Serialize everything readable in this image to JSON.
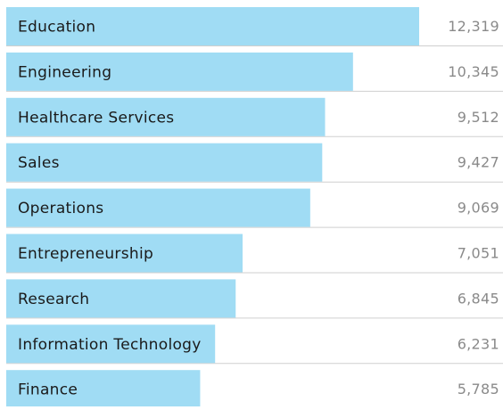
{
  "chart_data": {
    "type": "bar",
    "orientation": "horizontal",
    "categories": [
      "Education",
      "Engineering",
      "Healthcare Services",
      "Sales",
      "Operations",
      "Entrepreneurship",
      "Research",
      "Information Technology",
      "Finance"
    ],
    "values": [
      12319,
      10345,
      9512,
      9427,
      9069,
      7051,
      6845,
      6231,
      5785
    ],
    "value_labels": [
      "12,319",
      "10,345",
      "9,512",
      "9,427",
      "9,069",
      "7,051",
      "6,845",
      "6,231",
      "5,785"
    ],
    "color": "#a0dcf4"
  }
}
